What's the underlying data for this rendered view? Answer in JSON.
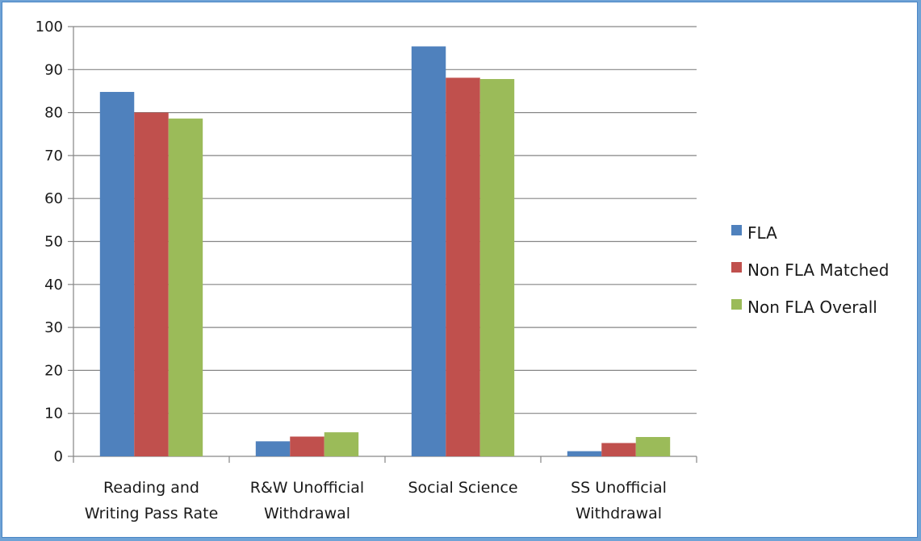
{
  "chart_data": {
    "type": "bar",
    "categories": [
      [
        "Reading and",
        "Writing Pass Rate"
      ],
      [
        "R&W Unofficial",
        "Withdrawal"
      ],
      [
        "Social Science"
      ],
      [
        "SS Unofficial",
        "Withdrawal"
      ]
    ],
    "series": [
      {
        "name": "FLA",
        "color": "#4f81bd",
        "values": [
          84.8,
          3.5,
          95.4,
          1.2
        ]
      },
      {
        "name": "Non FLA Matched",
        "color": "#c0504d",
        "values": [
          80.0,
          4.6,
          88.1,
          3.1
        ]
      },
      {
        "name": "Non FLA Overall",
        "color": "#9bbb59",
        "values": [
          78.6,
          5.6,
          87.8,
          4.5
        ]
      }
    ],
    "yticks": [
      "0",
      "10",
      "20",
      "30",
      "40",
      "50",
      "60",
      "70",
      "80",
      "90",
      "100"
    ],
    "ylim": [
      0,
      100
    ],
    "grid": true,
    "legend": "right"
  }
}
